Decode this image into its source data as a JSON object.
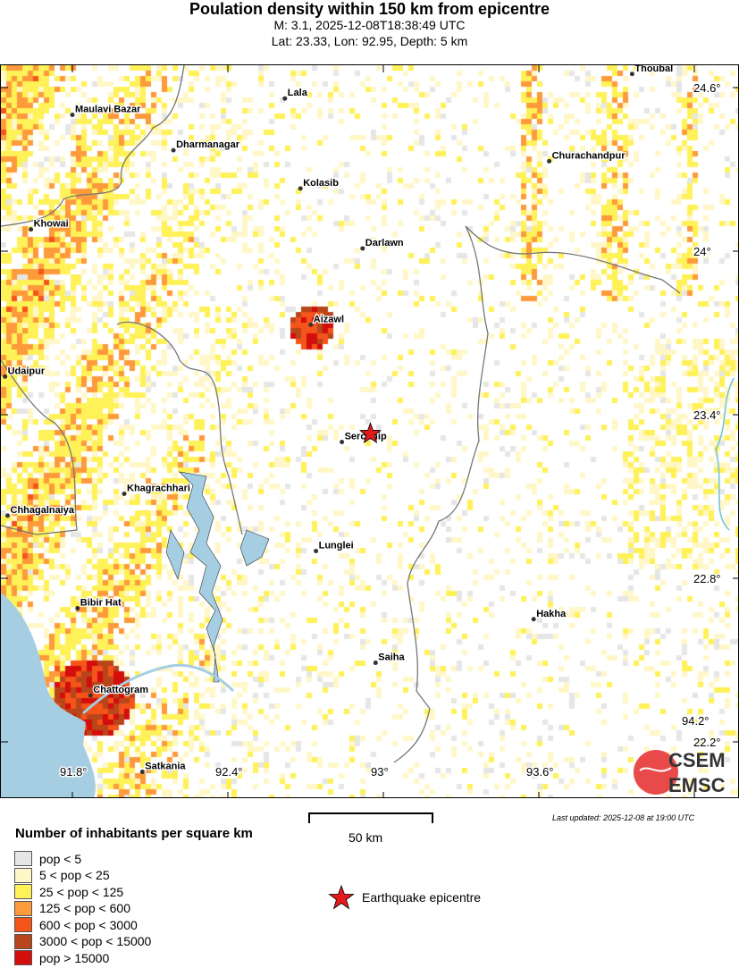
{
  "header": {
    "title": "Poulation density within 150 km from epicentre",
    "line1": "M: 3.1,  2025-12-08T18:38:49 UTC",
    "line2": "Lat: 23.33, Lon: 92.95, Depth: 5 km"
  },
  "event": {
    "lat": 23.33,
    "lon": 92.95,
    "magnitude": 3.1,
    "depth_km": 5
  },
  "map": {
    "lon_ticks": [
      {
        "v": 91.8,
        "label": "91.8°"
      },
      {
        "v": 92.4,
        "label": "92.4°"
      },
      {
        "v": 93,
        "label": "93°"
      },
      {
        "v": 93.6,
        "label": "93.6°"
      },
      {
        "v": 94.2,
        "label": "94.2°"
      }
    ],
    "lat_ticks": [
      {
        "v": 24.6,
        "label": "24.6°"
      },
      {
        "v": 24,
        "label": "24°"
      },
      {
        "v": 23.4,
        "label": "23.4°"
      },
      {
        "v": 22.8,
        "label": "22.8°"
      },
      {
        "v": 22.2,
        "label": "22.2°"
      }
    ],
    "cities": [
      {
        "name": "Thoubal",
        "lat": 24.65,
        "lon": 93.96
      },
      {
        "name": "Lala",
        "lat": 24.56,
        "lon": 92.62
      },
      {
        "name": "Maulavi Bazar",
        "lat": 24.5,
        "lon": 91.8
      },
      {
        "name": "Dharmanagar",
        "lat": 24.37,
        "lon": 92.19
      },
      {
        "name": "Churachandpur",
        "lat": 24.33,
        "lon": 93.64
      },
      {
        "name": "Kolasib",
        "lat": 24.23,
        "lon": 92.68
      },
      {
        "name": "Khowai",
        "lat": 24.08,
        "lon": 91.64
      },
      {
        "name": "Darlawn",
        "lat": 24.01,
        "lon": 92.92
      },
      {
        "name": "Aizawl",
        "lat": 23.73,
        "lon": 92.72
      },
      {
        "name": "Udaipur",
        "lat": 23.54,
        "lon": 91.54
      },
      {
        "name": "Serchhip",
        "lat": 23.3,
        "lon": 92.84
      },
      {
        "name": "Khagrachhari",
        "lat": 23.11,
        "lon": 92.0
      },
      {
        "name": "Chhagalnaiya",
        "lat": 23.03,
        "lon": 91.55
      },
      {
        "name": "Lunglei",
        "lat": 22.9,
        "lon": 92.74
      },
      {
        "name": "Bibir Hat",
        "lat": 22.69,
        "lon": 91.82
      },
      {
        "name": "Hakha",
        "lat": 22.65,
        "lon": 93.58
      },
      {
        "name": "Saiha",
        "lat": 22.49,
        "lon": 92.97
      },
      {
        "name": "Chattogram",
        "lat": 22.37,
        "lon": 91.87
      },
      {
        "name": "Satkania",
        "lat": 22.09,
        "lon": 92.07
      }
    ],
    "colors": {
      "water": "#a6cee3",
      "border": "#777777",
      "epicentre": "#e31a1c"
    }
  },
  "scale": {
    "label": "50 km"
  },
  "updated": "Last updated: 2025-12-08 at 19:00 UTC",
  "legend": {
    "title": "Number of inhabitants per square km",
    "items": [
      {
        "label": "pop < 5",
        "color": "#e6e6e6"
      },
      {
        "label": "5 < pop < 25",
        "color": "#fff7c8"
      },
      {
        "label": "25 < pop < 125",
        "color": "#fff158"
      },
      {
        "label": "125 < pop < 600",
        "color": "#fd9a3b"
      },
      {
        "label": "600 < pop < 3000",
        "color": "#f5541a"
      },
      {
        "label": "3000 < pop < 15000",
        "color": "#b8461a"
      },
      {
        "label": "pop > 15000",
        "color": "#d40d0d"
      }
    ],
    "epicentre_label": "Earthquake epicentre"
  },
  "logo": {
    "line1": "CSEM",
    "line2": "EMSC"
  }
}
